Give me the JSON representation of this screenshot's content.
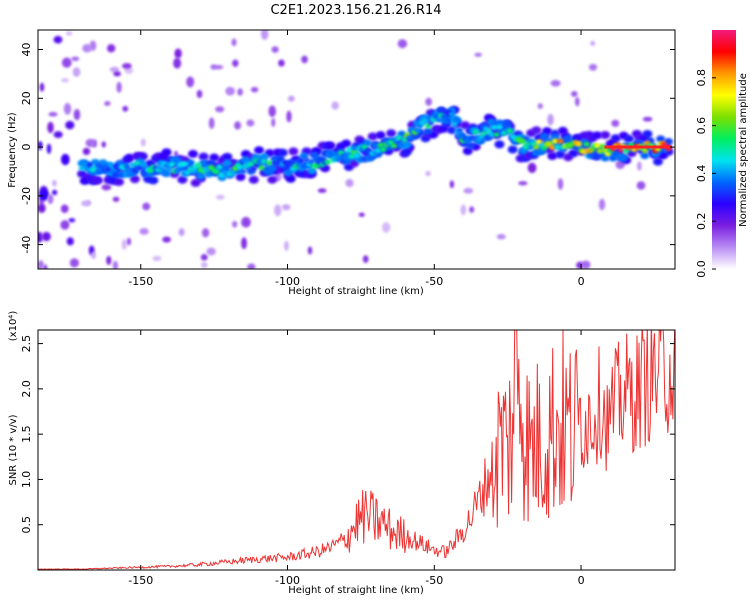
{
  "title": "C2E1.2023.156.21.26.R14",
  "chart_data": [
    {
      "type": "heatmap",
      "title": "C2E1.2023.156.21.26.R14",
      "xlabel": "Height of straight line (km)",
      "ylabel": "Frequency (Hz)",
      "xlim": [
        -185,
        32
      ],
      "ylim": [
        -50,
        48
      ],
      "xticks": [
        -150,
        -100,
        -50,
        0
      ],
      "yticks": [
        -40,
        -20,
        0,
        20,
        40
      ],
      "grid": false,
      "colorbar": {
        "label": "Normalized spectral amplitude",
        "range": [
          0.0,
          1.0
        ],
        "ticks": [
          0.0,
          0.2,
          0.4,
          0.6,
          0.8
        ],
        "colors": [
          "#ffffff",
          "#b98cf5",
          "#7a1fe0",
          "#2b00ff",
          "#0067ff",
          "#00e4ee",
          "#00ee5e",
          "#7ee000",
          "#ffff00",
          "#ff9900",
          "#ff0000",
          "#f21a7d"
        ]
      },
      "ridge": {
        "x": [
          -170,
          -160,
          -150,
          -140,
          -130,
          -120,
          -110,
          -100,
          -90,
          -80,
          -70,
          -60,
          -52,
          -45,
          -40,
          -35,
          -30,
          -25,
          -22,
          -20,
          -15,
          -10,
          -5,
          0,
          5,
          10,
          15,
          20,
          25,
          30
        ],
        "y": [
          -9,
          -9,
          -8,
          -8,
          -9,
          -10,
          -7,
          -8,
          -6,
          -3,
          -1,
          3,
          10,
          14,
          3,
          5,
          7,
          6,
          2,
          1,
          1,
          1,
          1,
          0,
          -1,
          -1,
          -1,
          0,
          0,
          0
        ]
      },
      "ridge_amplitude": [
        0.45,
        0.5,
        0.5,
        0.55,
        0.55,
        0.6,
        0.55,
        0.55,
        0.55,
        0.55,
        0.55,
        0.6,
        0.6,
        0.5,
        0.55,
        0.6,
        0.6,
        0.6,
        0.6,
        0.65,
        0.7,
        0.8,
        0.8,
        0.85,
        0.9,
        0.95,
        0.95,
        0.95,
        0.95,
        0.95
      ]
    },
    {
      "type": "line",
      "xlabel": "Height of straight line (km)",
      "ylabel": "SNR (10 * v/v)",
      "y_multiplier_label": "(x10⁴)",
      "xlim": [
        -185,
        32
      ],
      "ylim": [
        0,
        2.65
      ],
      "xticks": [
        -150,
        -100,
        -50,
        0
      ],
      "yticks": [
        0.5,
        1.0,
        1.5,
        2.0,
        2.5
      ],
      "line_color": "#ee3333",
      "series": [
        {
          "x": [
            -185,
            -170,
            -160,
            -150,
            -140,
            -130,
            -120,
            -110,
            -100,
            -90,
            -85,
            -80,
            -76,
            -73,
            -70,
            -67,
            -64,
            -60,
            -55,
            -50,
            -46,
            -42,
            -38,
            -35,
            -32,
            -29,
            -27,
            -25,
            -23,
            -21,
            -19,
            -17,
            -15,
            -12,
            -9,
            -6,
            -3,
            0,
            3,
            5,
            7,
            9,
            12,
            15,
            18,
            21,
            24,
            27,
            30,
            32
          ],
          "y": [
            0.01,
            0.01,
            0.02,
            0.03,
            0.04,
            0.06,
            0.09,
            0.12,
            0.14,
            0.2,
            0.25,
            0.35,
            0.55,
            0.6,
            0.55,
            0.5,
            0.42,
            0.38,
            0.3,
            0.22,
            0.2,
            0.35,
            0.55,
            0.75,
            1.0,
            1.2,
            1.5,
            1.3,
            1.8,
            2.3,
            1.5,
            1.3,
            1.4,
            1.5,
            1.6,
            1.6,
            1.5,
            1.6,
            1.7,
            1.75,
            1.9,
            1.6,
            1.85,
            1.95,
            1.95,
            2.05,
            2.15,
            2.2,
            2.25,
            2.25
          ]
        }
      ]
    }
  ]
}
